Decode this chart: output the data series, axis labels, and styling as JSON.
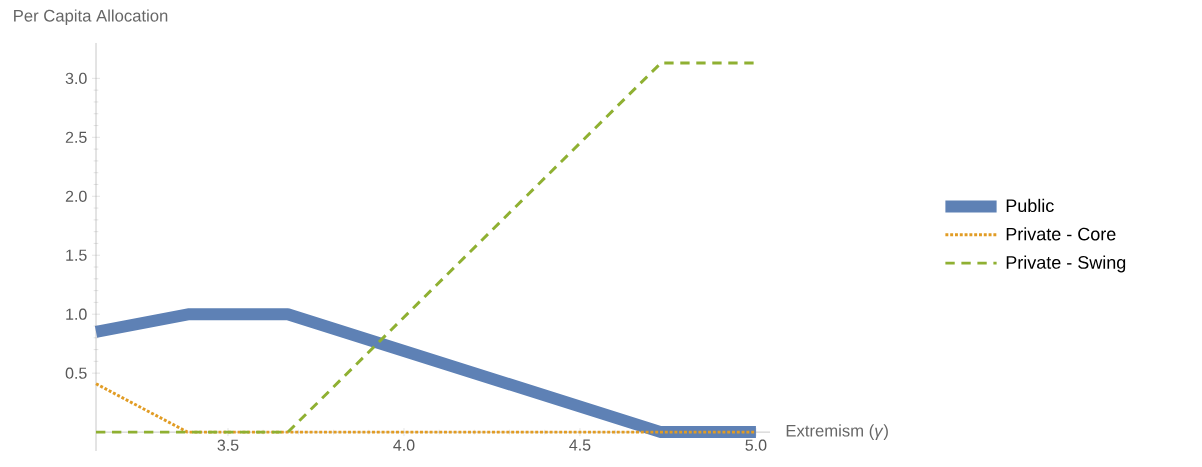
{
  "chart_data": {
    "type": "line",
    "xlabel": "Extremism (*γ*)",
    "ylabel": "Per Capita Allocation",
    "xlim": [
      3.125,
      5.04
    ],
    "ylim": [
      -0.16,
      3.3
    ],
    "xticks": [
      {
        "value": 3.5,
        "label": "3.5"
      },
      {
        "value": 4,
        "label": "4.0"
      },
      {
        "value": 4.5,
        "label": "4.5"
      },
      {
        "value": 5,
        "label": "5.0"
      }
    ],
    "yticks": [
      {
        "value": 0.5,
        "label": "0.5"
      },
      {
        "value": 1,
        "label": "1.0"
      },
      {
        "value": 1.5,
        "label": "1.5"
      },
      {
        "value": 2,
        "label": "2.0"
      },
      {
        "value": 2.5,
        "label": "2.5"
      },
      {
        "value": 3,
        "label": "3.0"
      }
    ],
    "legend": "right",
    "grid": false,
    "series": [
      {
        "name": "Public",
        "color": "#5e81b5",
        "line_style": "solid",
        "x": [
          3.125,
          3.39,
          3.67,
          4.73,
          5.0
        ],
        "values": [
          0.85,
          1.0,
          1.0,
          0,
          0
        ]
      },
      {
        "name": "Private - Core",
        "color": "#e19c24",
        "line_style": "dotted",
        "x": [
          3.125,
          3.385,
          5.0
        ],
        "values": [
          0.41,
          0,
          0
        ]
      },
      {
        "name": "Private - Swing",
        "color": "#8fb032",
        "line_style": "dashed",
        "x": [
          3.125,
          3.67,
          4.73,
          5.0
        ],
        "values": [
          0,
          0,
          3.13,
          3.13
        ]
      }
    ]
  }
}
